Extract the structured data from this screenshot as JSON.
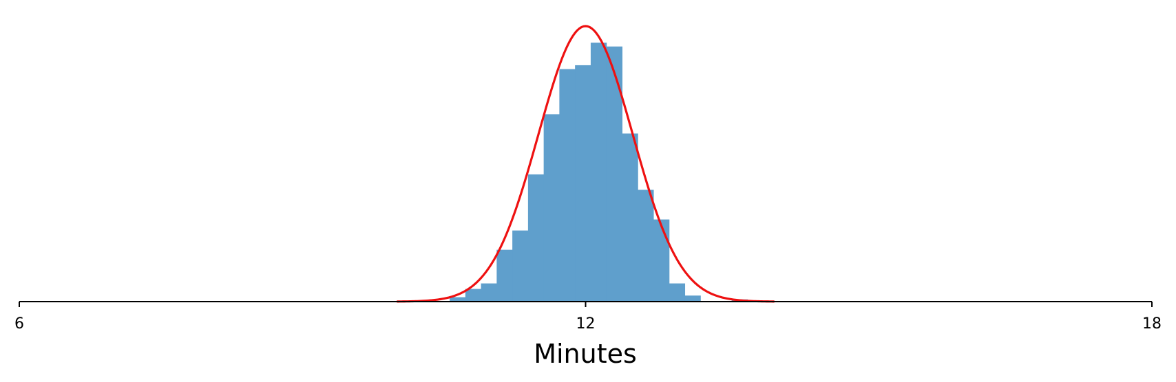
{
  "chart_data": {
    "type": "bar",
    "title": "",
    "xlabel": "Minutes",
    "ylabel": "",
    "xlim": [
      6,
      18
    ],
    "ylim": [
      0,
      1.0
    ],
    "grid": false,
    "xticks": [
      6,
      12,
      18
    ],
    "xtick_labels": [
      "6",
      "12",
      "18"
    ],
    "bin_width": 0.166,
    "histogram": {
      "bin_edges": [
        10.56,
        10.726,
        10.892,
        11.058,
        11.224,
        11.39,
        11.556,
        11.722,
        11.888,
        12.054,
        12.22,
        12.386,
        12.552,
        12.718,
        12.884,
        13.05,
        13.216,
        13.382,
        13.548,
        13.714,
        13.88
      ],
      "values": [
        0.016,
        0.046,
        0.066,
        0.188,
        0.258,
        0.462,
        0.68,
        0.844,
        0.858,
        0.94,
        0.926,
        0.61,
        0.406,
        0.298,
        0.066,
        0.022,
        0,
        0,
        0.008,
        0
      ],
      "color": "#5f9fcc"
    },
    "curve": {
      "type": "normal_pdf",
      "mean": 12.0,
      "sd": 0.5,
      "x_range": [
        10.0,
        14.0
      ],
      "peak": 1.0,
      "color": "#ee1111"
    },
    "axis_color": "#000000"
  }
}
